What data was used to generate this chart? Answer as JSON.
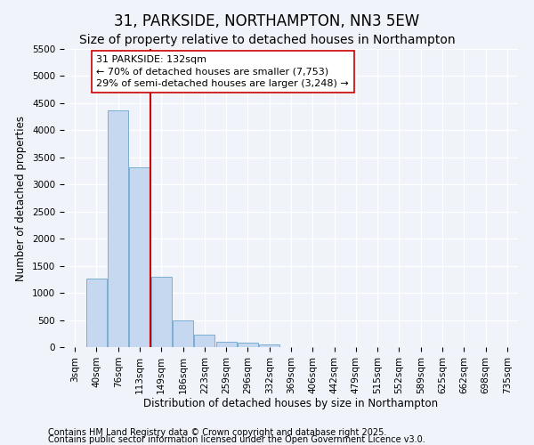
{
  "title": "31, PARKSIDE, NORTHAMPTON, NN3 5EW",
  "subtitle": "Size of property relative to detached houses in Northampton",
  "xlabel": "Distribution of detached houses by size in Northampton",
  "ylabel": "Number of detached properties",
  "categories": [
    "3sqm",
    "40sqm",
    "76sqm",
    "113sqm",
    "149sqm",
    "186sqm",
    "223sqm",
    "259sqm",
    "296sqm",
    "332sqm",
    "369sqm",
    "406sqm",
    "442sqm",
    "479sqm",
    "515sqm",
    "552sqm",
    "589sqm",
    "625sqm",
    "662sqm",
    "698sqm",
    "735sqm"
  ],
  "values": [
    0,
    1270,
    4370,
    3320,
    1290,
    500,
    230,
    100,
    75,
    50,
    0,
    0,
    0,
    0,
    0,
    0,
    0,
    0,
    0,
    0,
    0
  ],
  "bar_color": "#c5d8f0",
  "bar_edge_color": "#7badd4",
  "vline_x_index": 3,
  "vline_color": "#cc0000",
  "annotation_text": "31 PARKSIDE: 132sqm\n← 70% of detached houses are smaller (7,753)\n29% of semi-detached houses are larger (3,248) →",
  "annotation_box_color": "#ffffff",
  "annotation_box_edge": "#cc0000",
  "ylim": [
    0,
    5500
  ],
  "yticks": [
    0,
    500,
    1000,
    1500,
    2000,
    2500,
    3000,
    3500,
    4000,
    4500,
    5000,
    5500
  ],
  "footer1": "Contains HM Land Registry data © Crown copyright and database right 2025.",
  "footer2": "Contains public sector information licensed under the Open Government Licence v3.0.",
  "bg_color": "#f0f4fa",
  "plot_bg_color": "#f0f4fa",
  "grid_color": "#ffffff",
  "title_fontsize": 12,
  "subtitle_fontsize": 10,
  "axis_label_fontsize": 8.5,
  "tick_fontsize": 7.5,
  "annotation_fontsize": 8,
  "footer_fontsize": 7
}
